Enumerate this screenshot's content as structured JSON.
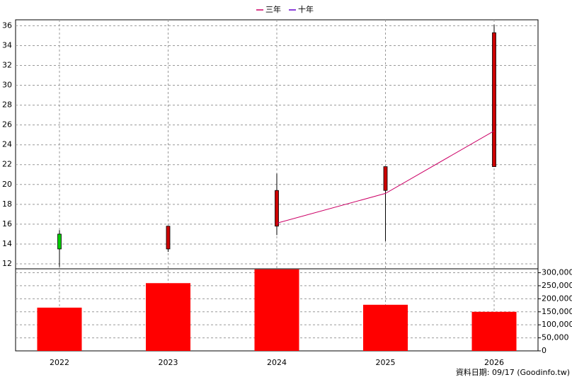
{
  "chart_data": {
    "type": "candlestick",
    "categories": [
      "2022",
      "2023",
      "2024",
      "2025",
      "2026"
    ],
    "ohlc": {
      "open": [
        15.0,
        13.5,
        15.8,
        19.4,
        21.8
      ],
      "high": [
        15.4,
        15.8,
        21.1,
        21.8,
        36.1
      ],
      "low": [
        11.7,
        13.2,
        14.9,
        14.3,
        21.8
      ],
      "close": [
        13.5,
        15.8,
        19.4,
        21.8,
        35.3
      ],
      "up_color": "#cc0000",
      "down_color": "#00cc00"
    },
    "series": [
      {
        "name": "三年",
        "color": "#cc0066",
        "values": [
          null,
          null,
          16.1,
          19.1,
          25.4
        ]
      },
      {
        "name": "十年",
        "color": "#6600cc",
        "values": [
          null,
          null,
          null,
          null,
          null
        ]
      }
    ],
    "volume": {
      "color": "#ff0000",
      "axis": "y2",
      "values": [
        166000,
        260000,
        313000,
        177000,
        150000
      ]
    },
    "ylim": [
      11.5,
      36.6
    ],
    "yticks": [
      12,
      14,
      16,
      18,
      20,
      22,
      24,
      26,
      28,
      30,
      32,
      34,
      36
    ],
    "y2lim": [
      0,
      315000
    ],
    "y2ticks": [
      0,
      {
        "value": 50000,
        "label": "50,000"
      },
      {
        "value": 100000,
        "label": "100,000"
      },
      {
        "value": 150000,
        "label": "150,000"
      },
      {
        "value": 200000,
        "label": "200,000"
      },
      {
        "value": 250000,
        "label": "250,000"
      },
      {
        "value": 300000,
        "label": "300,000"
      }
    ],
    "grid": true,
    "legend": "top",
    "footer": "資料日期: 09/17  (Goodinfo.tw)"
  }
}
